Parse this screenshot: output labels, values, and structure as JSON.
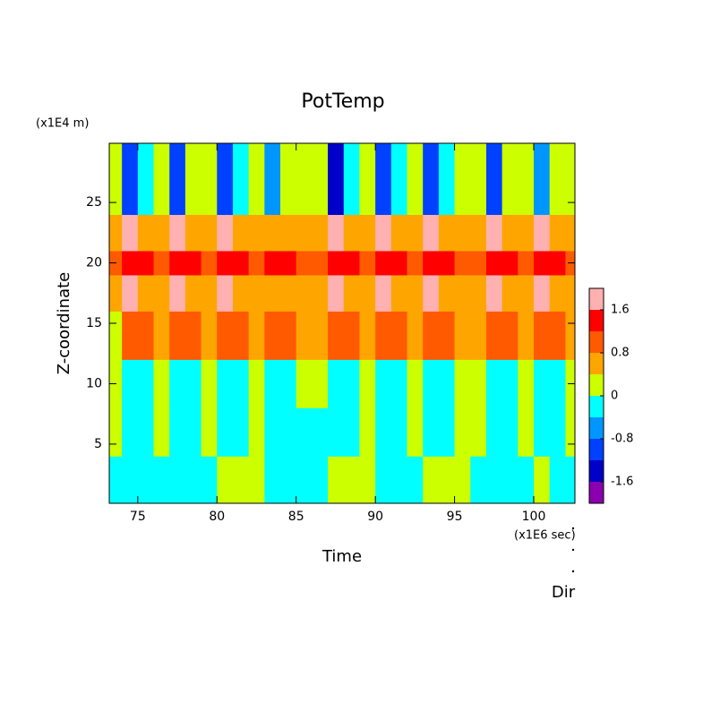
{
  "chart_data": {
    "type": "contour",
    "title": "PotTemp",
    "x_label": "Time",
    "y_label": "Z-coordinate",
    "x_unit": "(x1E6 sec)",
    "y_unit": "(x1E4 m)",
    "annotation": "Dir",
    "x": [
      73.5,
      74.5,
      75.5,
      76.5,
      77.5,
      78.5,
      79.5,
      80.5,
      81.5,
      82.5,
      83.5,
      84.5,
      85.5,
      86.5,
      87.5,
      88.5,
      89.5,
      90.5,
      91.5,
      92.5,
      93.5,
      94.5,
      95.5,
      96.5,
      97.5,
      98.5,
      99.5,
      100.5,
      101.5,
      102.5
    ],
    "y": [
      2,
      6,
      10,
      14,
      18,
      20,
      22,
      26
    ],
    "z": [
      [
        -0.2,
        -0.2,
        -0.2,
        -0.2,
        -0.2,
        -0.2,
        -0.2,
        0.2,
        0.2,
        0.2,
        -0.2,
        -0.2,
        -0.2,
        -0.2,
        0.2,
        0.2,
        0.2,
        -0.2,
        -0.2,
        -0.2,
        0.2,
        0.2,
        0.2,
        -0.2,
        -0.2,
        -0.2,
        -0.2,
        0.2,
        -0.2,
        -0.2
      ],
      [
        0.2,
        -0.2,
        -0.2,
        0.2,
        -0.2,
        -0.2,
        0.2,
        -0.2,
        -0.2,
        0.2,
        -0.2,
        -0.2,
        -0.2,
        -0.2,
        -0.2,
        -0.2,
        0.2,
        -0.2,
        -0.2,
        0.2,
        -0.2,
        -0.2,
        0.2,
        0.2,
        -0.2,
        -0.2,
        0.2,
        -0.2,
        -0.2,
        0.2
      ],
      [
        0.2,
        -0.2,
        -0.2,
        0.2,
        -0.2,
        -0.2,
        0.2,
        -0.2,
        -0.2,
        0.2,
        -0.2,
        -0.2,
        0.2,
        0.2,
        -0.2,
        -0.2,
        0.2,
        -0.2,
        -0.2,
        0.2,
        -0.2,
        -0.2,
        0.2,
        0.2,
        -0.2,
        -0.2,
        0.2,
        -0.2,
        -0.2,
        0.2
      ],
      [
        0.2,
        1.0,
        1.0,
        0.6,
        1.0,
        1.0,
        0.6,
        1.0,
        1.0,
        0.6,
        1.0,
        1.0,
        0.6,
        0.6,
        1.0,
        1.0,
        0.6,
        1.0,
        1.0,
        0.6,
        1.0,
        1.0,
        0.6,
        0.6,
        1.0,
        1.0,
        0.6,
        1.0,
        1.0,
        0.6
      ],
      [
        0.6,
        1.8,
        0.6,
        0.6,
        1.8,
        0.6,
        0.6,
        1.8,
        0.6,
        0.6,
        0.6,
        0.6,
        0.6,
        0.6,
        1.8,
        0.6,
        0.6,
        1.8,
        0.6,
        0.6,
        1.8,
        0.6,
        0.6,
        0.6,
        1.8,
        0.6,
        0.6,
        1.8,
        0.6,
        0.6
      ],
      [
        1.0,
        1.4,
        1.4,
        1.0,
        1.4,
        1.4,
        1.0,
        1.4,
        1.4,
        1.0,
        1.4,
        1.4,
        1.0,
        1.0,
        1.4,
        1.4,
        1.0,
        1.4,
        1.4,
        1.0,
        1.4,
        1.4,
        1.0,
        1.0,
        1.4,
        1.4,
        1.0,
        1.4,
        1.4,
        1.0
      ],
      [
        0.6,
        1.8,
        0.6,
        0.6,
        1.8,
        0.6,
        0.6,
        1.8,
        0.6,
        0.6,
        0.6,
        0.6,
        0.6,
        0.6,
        1.8,
        0.6,
        0.6,
        1.8,
        0.6,
        0.6,
        1.8,
        0.6,
        0.6,
        0.6,
        1.8,
        0.6,
        0.6,
        1.8,
        0.6,
        0.6
      ],
      [
        0.2,
        -1.0,
        -0.2,
        0.2,
        -1.0,
        0.2,
        0.2,
        -1.0,
        -0.2,
        0.2,
        -0.6,
        0.2,
        0.2,
        0.2,
        -1.4,
        -0.2,
        0.2,
        -1.0,
        -0.2,
        0.2,
        -1.0,
        -0.2,
        0.2,
        0.2,
        -1.0,
        0.2,
        0.2,
        -0.6,
        0.2,
        0.2
      ]
    ],
    "levels": [
      -2.0,
      -1.6,
      -1.2,
      -0.8,
      -0.4,
      0,
      0.4,
      0.8,
      1.2,
      1.6,
      2.0
    ],
    "colors": [
      "#8a00b0",
      "#0000c8",
      "#0040ff",
      "#0096ff",
      "#00ffff",
      "#ccff00",
      "#ffa500",
      "#ff5a00",
      "#ff0000",
      "#ffb0b0"
    ],
    "colorbar_ticks": [
      -1.6,
      -0.8,
      0,
      0.8,
      1.6
    ],
    "xlim": [
      73.2,
      102.6
    ],
    "ylim": [
      0.1,
      29.9
    ],
    "xticks": [
      75,
      80,
      85,
      90,
      95,
      100
    ],
    "yticks": [
      5,
      10,
      15,
      20,
      25
    ]
  }
}
